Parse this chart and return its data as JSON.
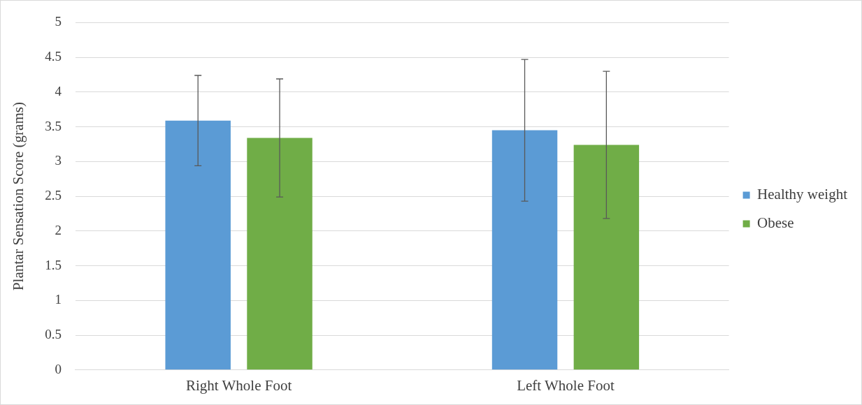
{
  "chart_data": {
    "type": "bar",
    "ylabel": "Plantar Sensation Score (grams)",
    "categories": [
      "Right Whole Foot",
      "Left Whole Foot"
    ],
    "series": [
      {
        "name": "Healthy weight",
        "color": "#5b9bd5",
        "values": [
          3.59,
          3.45
        ],
        "errors": [
          0.65,
          1.02
        ]
      },
      {
        "name": "Obese",
        "color": "#70ad47",
        "values": [
          3.34,
          3.24
        ],
        "errors": [
          0.85,
          1.06
        ]
      }
    ],
    "ylim": [
      0,
      5
    ],
    "yticks": [
      0,
      0.5,
      1,
      1.5,
      2,
      2.5,
      3,
      3.5,
      4,
      4.5,
      5
    ],
    "grid": "y",
    "legend": "right"
  }
}
